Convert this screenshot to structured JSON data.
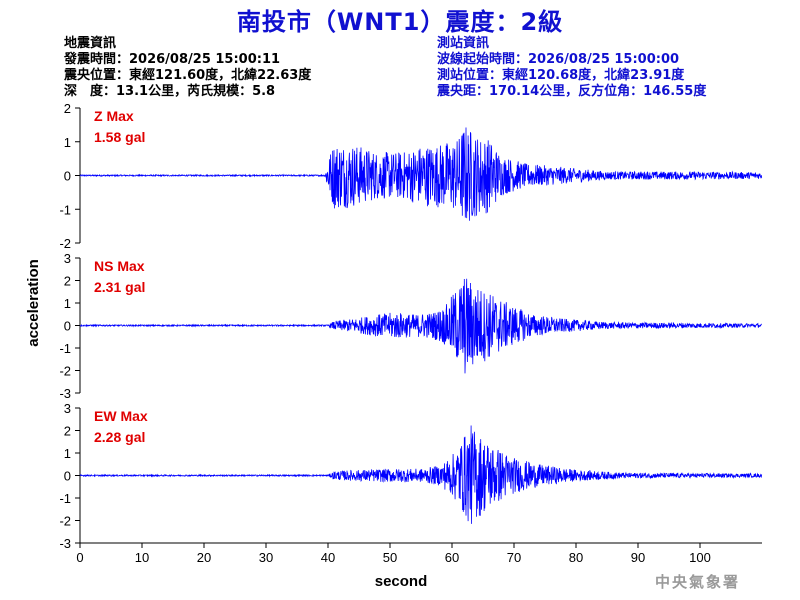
{
  "title": "南投市（WNT1）震度：2級",
  "event_info": {
    "heading": "地震資訊",
    "origin_time": "發震時間：2026/08/25 15:00:11",
    "epicenter": "震央位置：東經121.60度，北緯22.63度",
    "depth_magnitude": "深　度：13.1公里，芮氏規模：5.8"
  },
  "station_info": {
    "heading": "測站資訊",
    "arrival_time": "波線起始時間：2026/08/25 15:00:00",
    "location": "測站位置：東經120.68度，北緯23.91度",
    "distance": "震央距：170.14公里，反方位角：146.55度"
  },
  "agency": "中央氣象署",
  "colors": {
    "title": "#1010d0",
    "trace": "#0000ff",
    "label": "#e00000",
    "axis": "#000000"
  },
  "chart_data": {
    "type": "line",
    "xlabel": "second",
    "ylabel": "acceleration",
    "x_range": [
      0,
      110
    ],
    "x_ticks": [
      0,
      10,
      20,
      30,
      40,
      50,
      60,
      70,
      80,
      90,
      100
    ],
    "panels": [
      {
        "component": "Z",
        "label": "Z Max",
        "max_text": "1.58 gal",
        "max_value": 1.58,
        "y_range": [
          -2,
          2
        ],
        "y_ticks": [
          -2,
          -1,
          0,
          1,
          2
        ],
        "envelope": [
          [
            0,
            0.02
          ],
          [
            39.5,
            0.02
          ],
          [
            40,
            0.5
          ],
          [
            41,
            1.0
          ],
          [
            44,
            0.95
          ],
          [
            48,
            0.7
          ],
          [
            52,
            0.7
          ],
          [
            55,
            0.9
          ],
          [
            58,
            0.95
          ],
          [
            61,
            1.1
          ],
          [
            62,
            1.58
          ],
          [
            64,
            1.2
          ],
          [
            66,
            1.1
          ],
          [
            68,
            0.6
          ],
          [
            72,
            0.35
          ],
          [
            78,
            0.25
          ],
          [
            85,
            0.12
          ],
          [
            95,
            0.12
          ],
          [
            110,
            0.1
          ]
        ]
      },
      {
        "component": "NS",
        "label": "NS Max",
        "max_text": "2.31 gal",
        "max_value": 2.31,
        "y_range": [
          -3,
          3
        ],
        "y_ticks": [
          -3,
          -2,
          -1,
          0,
          1,
          2,
          3
        ],
        "envelope": [
          [
            0,
            0.03
          ],
          [
            40,
            0.03
          ],
          [
            41,
            0.2
          ],
          [
            44,
            0.3
          ],
          [
            48,
            0.5
          ],
          [
            51,
            0.6
          ],
          [
            54,
            0.5
          ],
          [
            57,
            0.6
          ],
          [
            59,
            0.9
          ],
          [
            61,
            1.8
          ],
          [
            62,
            2.31
          ],
          [
            64,
            1.8
          ],
          [
            66,
            1.5
          ],
          [
            69,
            1.0
          ],
          [
            73,
            0.5
          ],
          [
            78,
            0.3
          ],
          [
            85,
            0.15
          ],
          [
            110,
            0.08
          ]
        ]
      },
      {
        "component": "EW",
        "label": "EW Max",
        "max_text": "2.28 gal",
        "max_value": 2.28,
        "y_range": [
          -3,
          3
        ],
        "y_ticks": [
          -3,
          -2,
          -1,
          0,
          1,
          2,
          3
        ],
        "envelope": [
          [
            0,
            0.03
          ],
          [
            40,
            0.03
          ],
          [
            41,
            0.2
          ],
          [
            45,
            0.25
          ],
          [
            50,
            0.3
          ],
          [
            55,
            0.3
          ],
          [
            58,
            0.45
          ],
          [
            60,
            0.9
          ],
          [
            62,
            1.8
          ],
          [
            63,
            2.28
          ],
          [
            65,
            1.7
          ],
          [
            67,
            1.3
          ],
          [
            70,
            0.8
          ],
          [
            74,
            0.5
          ],
          [
            80,
            0.25
          ],
          [
            88,
            0.12
          ],
          [
            110,
            0.08
          ]
        ]
      }
    ]
  }
}
